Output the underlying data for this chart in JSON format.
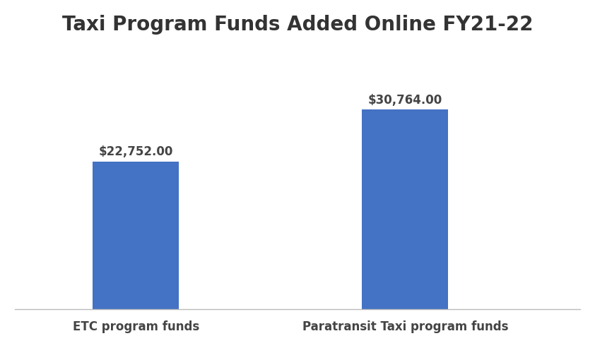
{
  "title": "Taxi Program Funds Added Online FY21-22",
  "categories": [
    "ETC program funds",
    "Paratransit Taxi program funds"
  ],
  "values": [
    22752.0,
    30764.0
  ],
  "bar_color": "#4472C4",
  "bar_labels": [
    "$22,752.00",
    "$30,764.00"
  ],
  "background_color": "#ffffff",
  "title_fontsize": 20,
  "title_fontweight": "bold",
  "title_color": "#333333",
  "label_fontsize": 12,
  "bar_label_fontsize": 12,
  "ylim": [
    0,
    40000
  ],
  "bar_width": 0.32,
  "x_positions": [
    1,
    2
  ],
  "xlim": [
    0.55,
    2.65
  ]
}
